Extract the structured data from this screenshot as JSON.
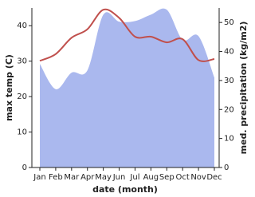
{
  "chart_data": {
    "type": "line-area",
    "x_label": "date (month)",
    "y_label": "max temp (C)",
    "y2_label": "med. precipitation (kg/m2)",
    "categories": [
      "Jan",
      "Feb",
      "Mar",
      "Apr",
      "May",
      "Jun",
      "Jul",
      "Aug",
      "Sep",
      "Oct",
      "Nov",
      "Dec"
    ],
    "series": [
      {
        "name": "max temp",
        "color": "#c0504d",
        "values": [
          30.1,
          32,
          36.6,
          39,
          44.5,
          42.2,
          36.9,
          36.9,
          35.3,
          36.2,
          30.3,
          30.6
        ]
      },
      {
        "name": "med. precipitation",
        "color": "#aab8ee",
        "axis": "y2",
        "values": [
          35.7,
          27,
          32.7,
          33.5,
          52.7,
          50.3,
          50.5,
          52.7,
          54.4,
          44,
          45.3,
          31
        ]
      }
    ],
    "ylim": [
      0,
      45
    ],
    "yticks": [
      0,
      10,
      20,
      30,
      40
    ],
    "y2lim": [
      0,
      55
    ],
    "y2ticks": [
      0,
      10,
      20,
      30,
      40,
      50
    ]
  }
}
